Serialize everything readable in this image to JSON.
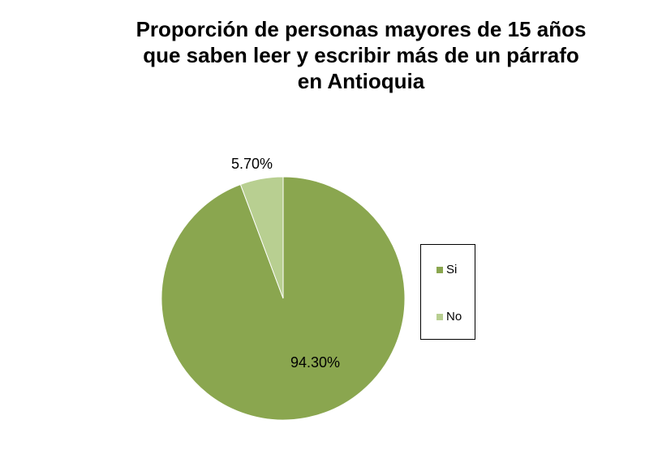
{
  "chart_data": {
    "type": "pie",
    "title_lines": [
      "Proporción de personas mayores de 15 años",
      "que saben leer y escribir más de un párrafo",
      "en Antioquia"
    ],
    "series": [
      {
        "name": "Si",
        "value": 94.3,
        "label": "94.30%",
        "color": "#8aa64f"
      },
      {
        "name": "No",
        "value": 5.7,
        "label": "5.70%",
        "color": "#b8cf91"
      }
    ],
    "start_angle_deg": 0,
    "direction": "clockwise",
    "legend_position": "right"
  }
}
